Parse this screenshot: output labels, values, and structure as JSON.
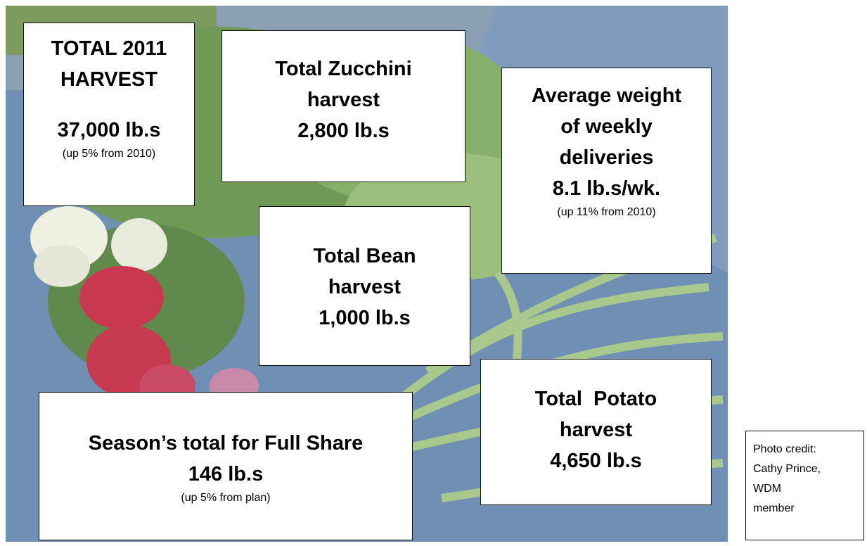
{
  "boxes": [
    {
      "heading": [
        "TOTAL 2011",
        "HARVEST"
      ],
      "figure": "37,000 lb.s",
      "note": "(up 5% from 2010)"
    },
    {
      "heading": [
        "Total Zucchini",
        "harvest"
      ],
      "figure": "2,800 lb.s"
    },
    {
      "heading": [
        "Average weight",
        "of weekly",
        "deliveries"
      ],
      "figure": "8.1 lb.s/wk.",
      "note": "(up 11% from 2010)"
    },
    {
      "heading": [
        "Total Bean",
        "harvest"
      ],
      "figure": "1,000 lb.s"
    },
    {
      "heading": [
        "Total  Potato",
        "harvest"
      ],
      "figure": "4,650 lb.s"
    },
    {
      "heading": [
        "Season’s total for Full Share"
      ],
      "figure": "146 lb.s",
      "note": "(up 5% from plan)"
    }
  ],
  "credit": [
    "Photo credit:",
    "Cathy Prince,",
    "WDM",
    "member"
  ]
}
